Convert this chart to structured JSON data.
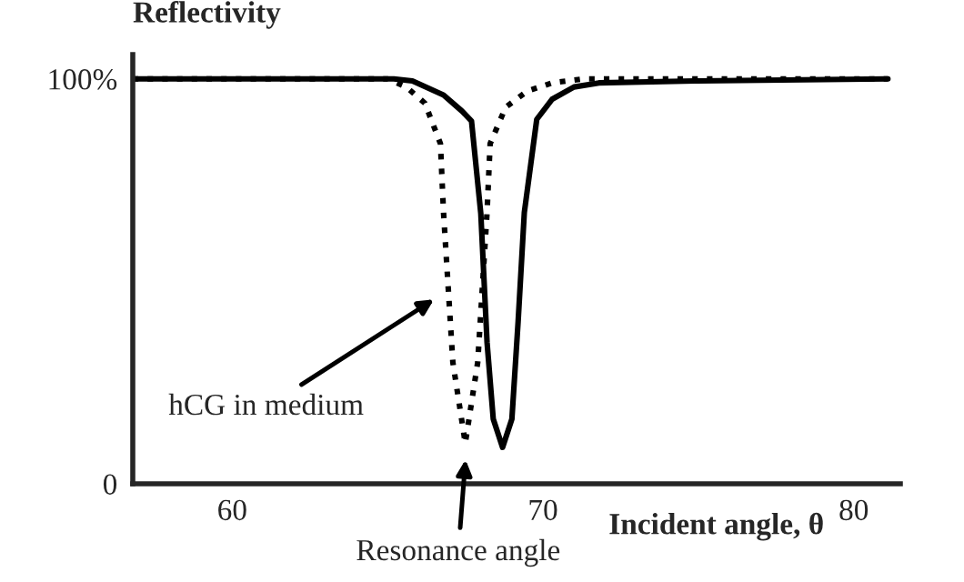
{
  "chart_data": {
    "type": "line",
    "ylabel": "Reflectivity",
    "xlabel": "Incident angle, θ",
    "xlim": [
      56.8,
      81.5
    ],
    "ylim": [
      0,
      106
    ],
    "xticks": [
      60,
      70,
      80
    ],
    "yticks": [
      {
        "value": 0,
        "label": "0"
      },
      {
        "value": 100,
        "label": "100%"
      }
    ],
    "grid": false,
    "legend": false,
    "series": [
      {
        "color": "#000000",
        "line_style": "solid",
        "x": [
          56.8,
          65.2,
          65.8,
          66.8,
          67.4,
          67.7,
          68.0,
          68.2,
          68.4,
          68.7,
          69.0,
          69.2,
          69.4,
          69.8,
          70.3,
          71.0,
          71.8,
          75.0,
          81.1
        ],
        "values": [
          100,
          100,
          99.5,
          96,
          92,
          89.6,
          66.7,
          35,
          16,
          9,
          16,
          40,
          67,
          90,
          95,
          98,
          99,
          99.5,
          100
        ]
      },
      {
        "color": "#000000",
        "line_style": "dotted",
        "x": [
          56.8,
          65.0,
          65.6,
          66.2,
          66.7,
          66.8,
          67.1,
          67.5,
          67.9,
          68.2,
          68.3,
          68.8,
          69.5,
          70.3,
          71.3,
          81.1
        ],
        "values": [
          100,
          100,
          98,
          94,
          84,
          67,
          30,
          10,
          30,
          67,
          84,
          93,
          97,
          99,
          100,
          100
        ]
      }
    ],
    "annotations": [
      "hCG in medium",
      "Resonance angle"
    ]
  }
}
